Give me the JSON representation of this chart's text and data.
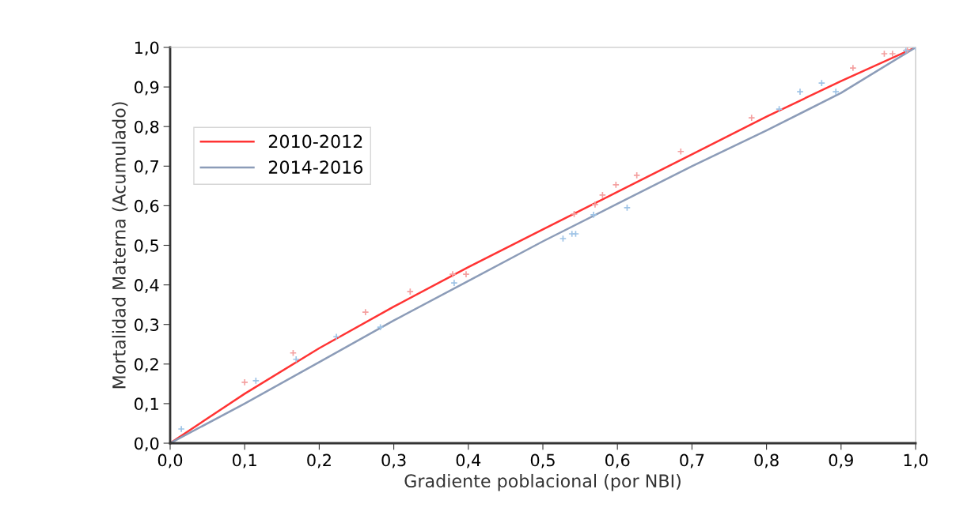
{
  "chart_data": {
    "type": "line",
    "xlabel": "Gradiente poblacional (por NBI)",
    "ylabel": "Mortalidad Materna (Acumulado)",
    "xlim": [
      0,
      1
    ],
    "ylim": [
      0,
      1
    ],
    "xticks": [
      {
        "value": 0,
        "label": "0,0"
      },
      {
        "value": 0.1,
        "label": "0,1"
      },
      {
        "value": 0.2,
        "label": "0,2"
      },
      {
        "value": 0.3,
        "label": "0,3"
      },
      {
        "value": 0.4,
        "label": "0,4"
      },
      {
        "value": 0.5,
        "label": "0,5"
      },
      {
        "value": 0.6,
        "label": "0,6"
      },
      {
        "value": 0.7,
        "label": "0,7"
      },
      {
        "value": 0.8,
        "label": "0,8"
      },
      {
        "value": 0.9,
        "label": "0,9"
      },
      {
        "value": 1,
        "label": "1,0"
      }
    ],
    "yticks": [
      {
        "value": 0,
        "label": "0,0"
      },
      {
        "value": 0.1,
        "label": "0,1"
      },
      {
        "value": 0.2,
        "label": "0,2"
      },
      {
        "value": 0.3,
        "label": "0,3"
      },
      {
        "value": 0.4,
        "label": "0,4"
      },
      {
        "value": 0.5,
        "label": "0,5"
      },
      {
        "value": 0.6,
        "label": "0,6"
      },
      {
        "value": 0.7,
        "label": "0,7"
      },
      {
        "value": 0.8,
        "label": "0,8"
      },
      {
        "value": 0.9,
        "label": "0,9"
      },
      {
        "value": 1,
        "label": "1,0"
      }
    ],
    "grid": false,
    "legend": "top left",
    "series": [
      {
        "type": "scatter",
        "marker": "cross",
        "color": "#f4a0a0",
        "x": [
          0.1,
          0.165,
          0.262,
          0.322,
          0.379,
          0.397,
          0.542,
          0.57,
          0.58,
          0.598,
          0.626,
          0.685,
          0.78,
          0.916,
          0.958,
          0.969,
          0.989
        ],
        "values": [
          0.154,
          0.228,
          0.331,
          0.383,
          0.427,
          0.427,
          0.579,
          0.603,
          0.627,
          0.653,
          0.677,
          0.737,
          0.822,
          0.948,
          0.984,
          0.984,
          0.994
        ]
      },
      {
        "type": "scatter",
        "marker": "cross",
        "color": "#9ec3e6",
        "x": [
          0.015,
          0.115,
          0.169,
          0.223,
          0.282,
          0.381,
          0.527,
          0.539,
          0.544,
          0.568,
          0.613,
          0.817,
          0.845,
          0.874,
          0.893,
          0.987,
          1
        ],
        "values": [
          0.036,
          0.158,
          0.212,
          0.269,
          0.293,
          0.405,
          0.517,
          0.529,
          0.529,
          0.577,
          0.595,
          0.844,
          0.888,
          0.91,
          0.888,
          0.992,
          1
        ]
      },
      {
        "name": "2010-2012",
        "color": "#ff3333",
        "marker": "none",
        "x": [
          0,
          0.1,
          0.2,
          0.3,
          0.4,
          0.5,
          0.6,
          0.7,
          0.8,
          0.9,
          1
        ],
        "values": [
          0,
          0.125,
          0.24,
          0.345,
          0.445,
          0.54,
          0.635,
          0.73,
          0.825,
          0.915,
          1
        ]
      },
      {
        "name": "2014-2016",
        "color": "#8c9cb8",
        "marker": "none",
        "x": [
          0,
          0.1,
          0.2,
          0.3,
          0.4,
          0.5,
          0.6,
          0.7,
          0.8,
          0.9,
          1
        ],
        "values": [
          0,
          0.1,
          0.205,
          0.31,
          0.41,
          0.51,
          0.605,
          0.7,
          0.79,
          0.885,
          1
        ]
      }
    ]
  }
}
